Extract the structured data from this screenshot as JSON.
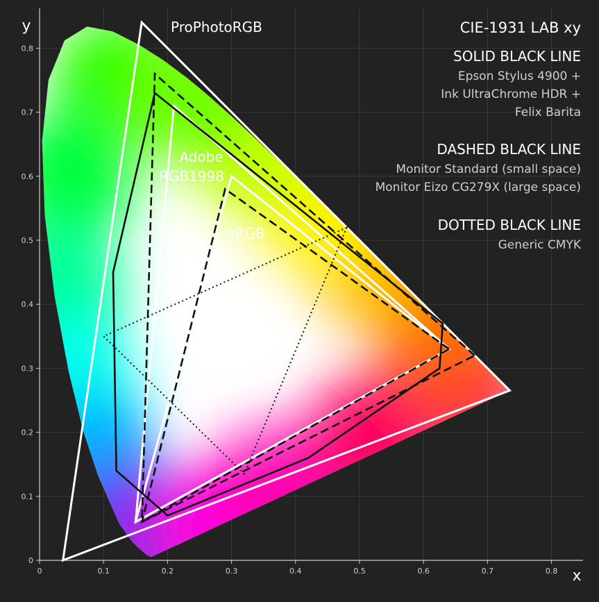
{
  "chart_data": {
    "type": "scatter",
    "title": "CIE-1931 LAB xy",
    "xlabel": "x",
    "ylabel": "y",
    "xlim": [
      0,
      0.85
    ],
    "ylim": [
      0,
      0.85
    ],
    "grid": true,
    "xticks": [
      "0",
      "0.1",
      "0.2",
      "0.3",
      "0.4",
      "0.5",
      "0.6",
      "0.7",
      "0.8"
    ],
    "yticks": [
      "0",
      "0.1",
      "0.2",
      "0.3",
      "0.4",
      "0.5",
      "0.6",
      "0.7",
      "0.8"
    ],
    "legend": {
      "solid": {
        "heading": "SOLID BLACK LINE",
        "lines": [
          "Epson Stylus 4900 +",
          "Ink UltraChrome HDR +",
          "Felix Barita"
        ]
      },
      "dashed": {
        "heading": "DASHED BLACK LINE",
        "lines": [
          "Monitor Standard (small space)",
          "Monitor Eizo CG279X (large space)"
        ]
      },
      "dotted": {
        "heading": "DOTTED BLACK LINE",
        "lines": [
          "Generic CMYK"
        ]
      }
    },
    "labels": {
      "prophoto": "ProPhotoRGB",
      "adobe_1": "Adobe",
      "adobe_2": "RGB1998",
      "srgb": "sRGB"
    },
    "spectral_locus": [
      [
        0.1741,
        0.005
      ],
      [
        0.1666,
        0.0089
      ],
      [
        0.1566,
        0.0177
      ],
      [
        0.144,
        0.0297
      ],
      [
        0.1241,
        0.0578
      ],
      [
        0.0913,
        0.1327
      ],
      [
        0.0687,
        0.2007
      ],
      [
        0.0454,
        0.295
      ],
      [
        0.0235,
        0.4127
      ],
      [
        0.0082,
        0.5384
      ],
      [
        0.0039,
        0.6548
      ],
      [
        0.0139,
        0.7502
      ],
      [
        0.0389,
        0.812
      ],
      [
        0.0743,
        0.8338
      ],
      [
        0.1142,
        0.8262
      ],
      [
        0.1547,
        0.8059
      ],
      [
        0.1929,
        0.7816
      ],
      [
        0.2296,
        0.7543
      ],
      [
        0.2658,
        0.7243
      ],
      [
        0.3016,
        0.6923
      ],
      [
        0.3373,
        0.6589
      ],
      [
        0.3731,
        0.6245
      ],
      [
        0.4087,
        0.5896
      ],
      [
        0.4441,
        0.5547
      ],
      [
        0.4788,
        0.5202
      ],
      [
        0.5125,
        0.4866
      ],
      [
        0.5448,
        0.4544
      ],
      [
        0.5752,
        0.4242
      ],
      [
        0.6029,
        0.3965
      ],
      [
        0.627,
        0.3725
      ],
      [
        0.6482,
        0.3514
      ],
      [
        0.6658,
        0.334
      ],
      [
        0.6801,
        0.3197
      ],
      [
        0.6915,
        0.3083
      ],
      [
        0.7006,
        0.2993
      ],
      [
        0.7347,
        0.2653
      ]
    ],
    "series": [
      {
        "name": "ProPhotoRGB",
        "style": "white-solid",
        "points": [
          [
            0.7347,
            0.2653
          ],
          [
            0.1596,
            0.8404
          ],
          [
            0.0366,
            0.0001
          ]
        ]
      },
      {
        "name": "Adobe RGB1998",
        "style": "white-solid",
        "points": [
          [
            0.64,
            0.33
          ],
          [
            0.21,
            0.71
          ],
          [
            0.15,
            0.06
          ]
        ]
      },
      {
        "name": "sRGB",
        "style": "white-solid",
        "points": [
          [
            0.64,
            0.33
          ],
          [
            0.3,
            0.6
          ],
          [
            0.15,
            0.06
          ]
        ]
      },
      {
        "name": "Epson Stylus 4900 + Ink UltraChrome HDR + Felix Barita",
        "style": "black-solid",
        "points": [
          [
            0.18,
            0.73
          ],
          [
            0.63,
            0.37
          ],
          [
            0.625,
            0.3
          ],
          [
            0.42,
            0.16
          ],
          [
            0.2,
            0.07
          ],
          [
            0.12,
            0.14
          ],
          [
            0.115,
            0.45
          ]
        ]
      },
      {
        "name": "Monitor Standard (small space)",
        "style": "black-dashed",
        "points": [
          [
            0.64,
            0.33
          ],
          [
            0.29,
            0.58
          ],
          [
            0.16,
            0.06
          ]
        ]
      },
      {
        "name": "Monitor Eizo CG279X (large space)",
        "style": "black-dashed",
        "points": [
          [
            0.68,
            0.32
          ],
          [
            0.18,
            0.76
          ],
          [
            0.16,
            0.06
          ]
        ]
      },
      {
        "name": "Generic CMYK",
        "style": "black-dotted",
        "points": [
          [
            0.48,
            0.52
          ],
          [
            0.1,
            0.35
          ],
          [
            0.32,
            0.135
          ]
        ]
      }
    ]
  }
}
